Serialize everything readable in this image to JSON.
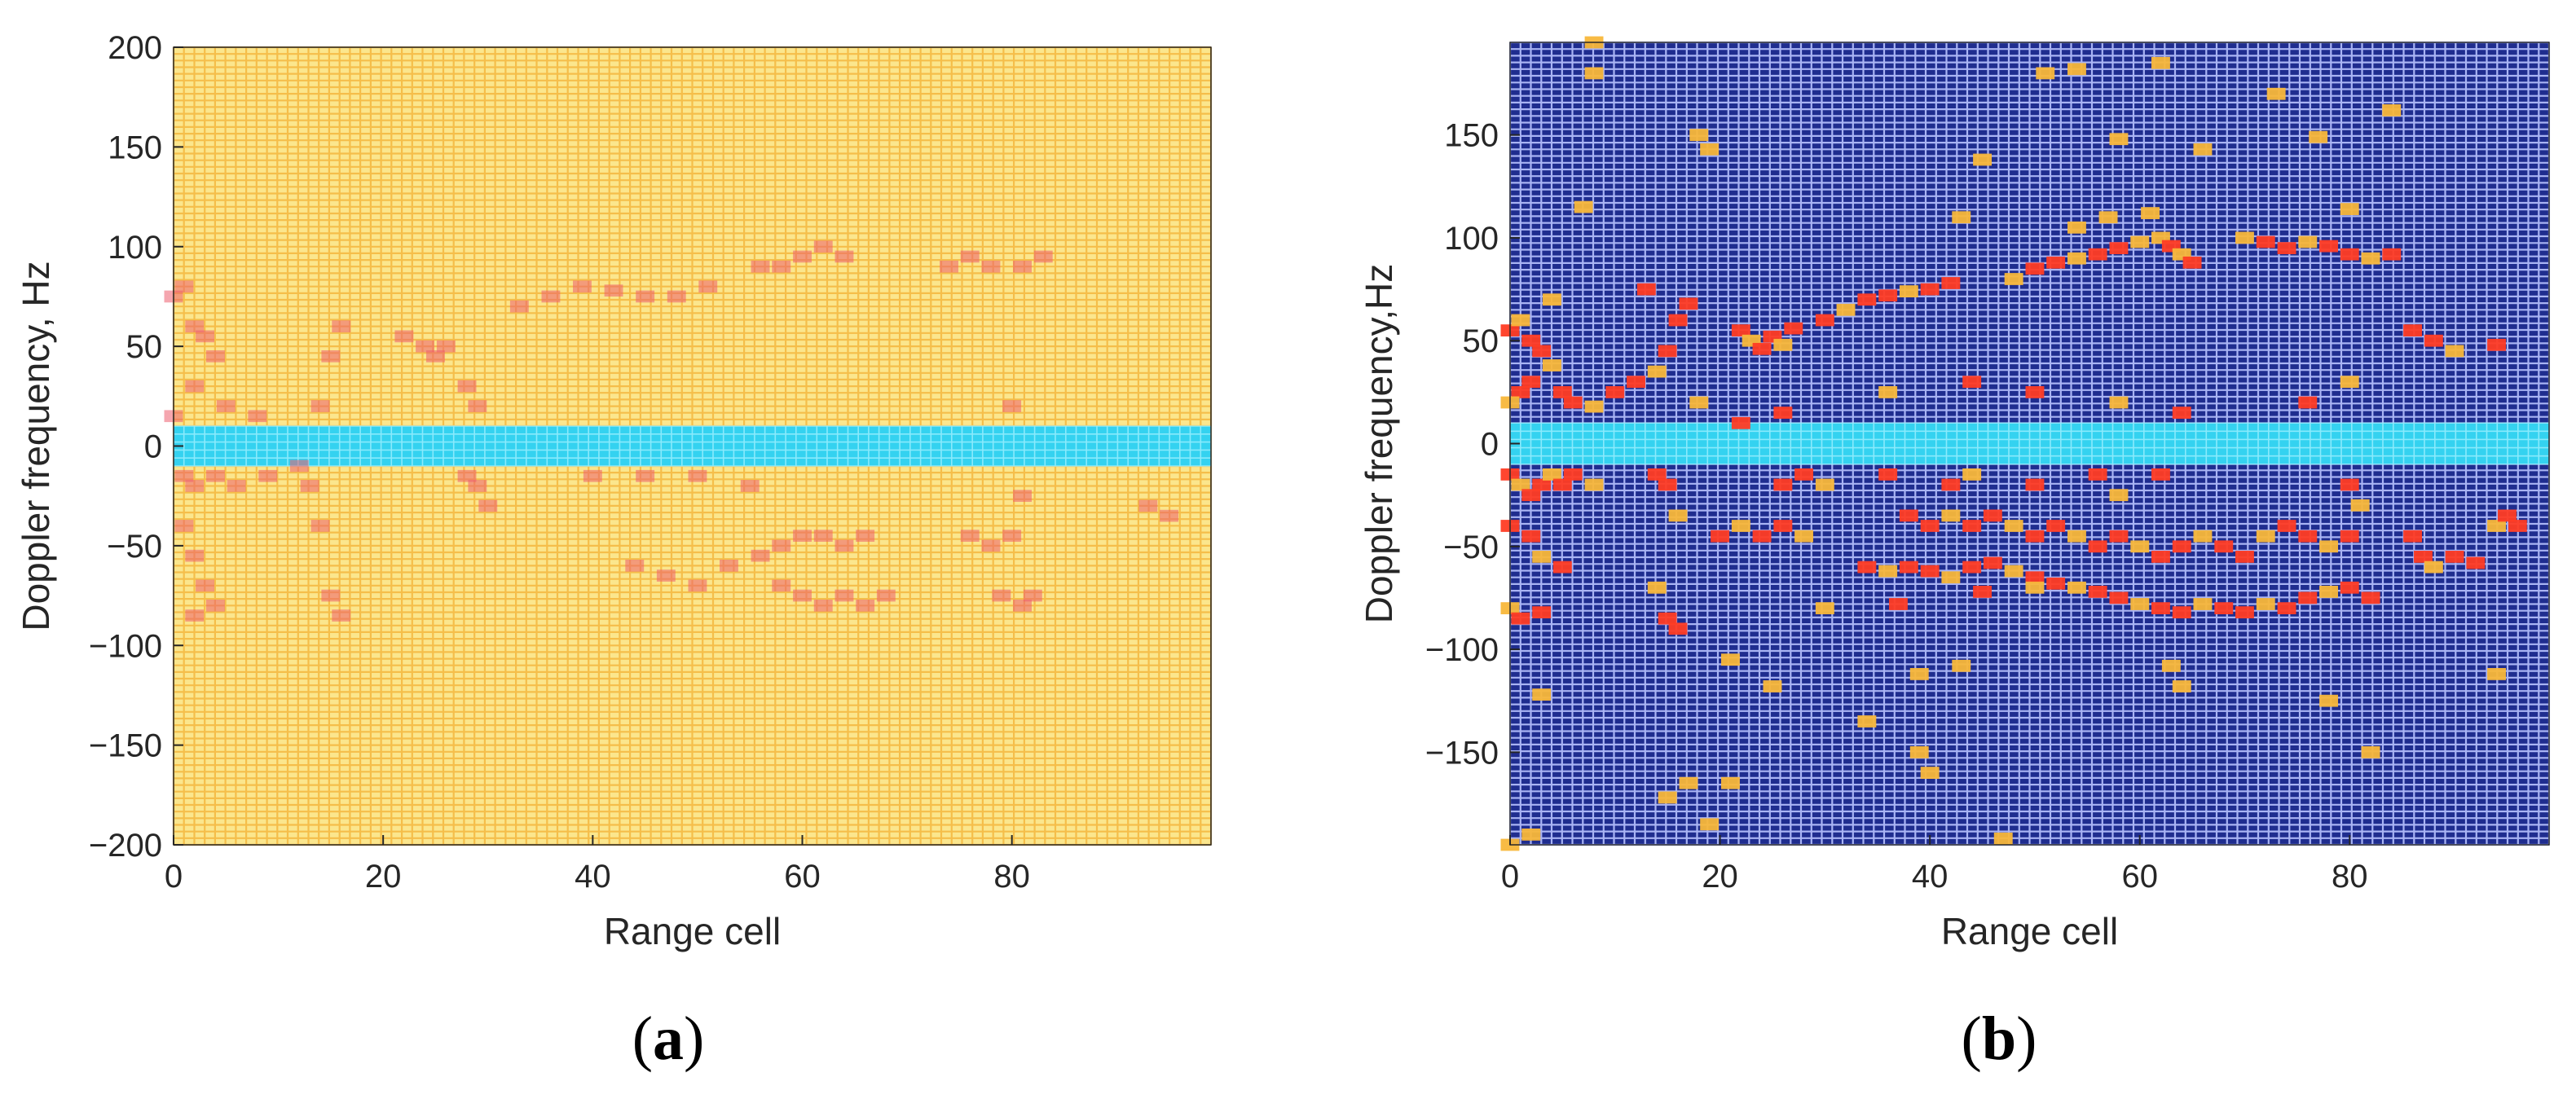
{
  "figure": {
    "panel_a_label": "a",
    "panel_b_label": "b"
  },
  "chart_data": [
    {
      "type": "heatmap",
      "panel": "a",
      "title": "",
      "xlabel": "Range cell",
      "ylabel": "Doppler frequency, Hz",
      "xlim": [
        0,
        99
      ],
      "ylim": [
        -200,
        200
      ],
      "xticks": [
        0,
        20,
        40,
        60,
        80
      ],
      "yticks": [
        -200,
        -150,
        -100,
        -50,
        0,
        50,
        100,
        150,
        200
      ],
      "xtick_labels": [
        "0",
        "20",
        "40",
        "60",
        "80"
      ],
      "ytick_labels": [
        "−200",
        "−150",
        "−100",
        "−50",
        "0",
        "50",
        "100",
        "150",
        "200"
      ],
      "grid": true,
      "colors": {
        "background": "#fbe68d",
        "grid": "#f4b942",
        "highlight": "#ec5d6e",
        "clutter_band": "#34d2f0"
      },
      "clutter_band": [
        -10,
        10
      ],
      "points": [
        [
          0,
          75
        ],
        [
          1,
          80
        ],
        [
          2,
          60
        ],
        [
          3,
          55
        ],
        [
          4,
          45
        ],
        [
          2,
          30
        ],
        [
          0,
          15
        ],
        [
          5,
          20
        ],
        [
          8,
          15
        ],
        [
          1,
          -15
        ],
        [
          2,
          -20
        ],
        [
          4,
          -15
        ],
        [
          6,
          -20
        ],
        [
          9,
          -15
        ],
        [
          1,
          -40
        ],
        [
          2,
          -55
        ],
        [
          3,
          -70
        ],
        [
          4,
          -80
        ],
        [
          2,
          -85
        ],
        [
          13,
          -20
        ],
        [
          14,
          -40
        ],
        [
          15,
          -75
        ],
        [
          16,
          -85
        ],
        [
          14,
          20
        ],
        [
          15,
          45
        ],
        [
          16,
          60
        ],
        [
          12,
          -10
        ],
        [
          22,
          55
        ],
        [
          24,
          50
        ],
        [
          26,
          50
        ],
        [
          25,
          45
        ],
        [
          28,
          30
        ],
        [
          29,
          20
        ],
        [
          28,
          -15
        ],
        [
          29,
          -20
        ],
        [
          30,
          -30
        ],
        [
          33,
          70
        ],
        [
          36,
          75
        ],
        [
          39,
          80
        ],
        [
          42,
          78
        ],
        [
          45,
          75
        ],
        [
          48,
          75
        ],
        [
          51,
          80
        ],
        [
          40,
          -15
        ],
        [
          45,
          -15
        ],
        [
          50,
          -15
        ],
        [
          55,
          -20
        ],
        [
          44,
          -60
        ],
        [
          47,
          -65
        ],
        [
          50,
          -70
        ],
        [
          53,
          -60
        ],
        [
          56,
          -55
        ],
        [
          58,
          -50
        ],
        [
          60,
          -45
        ],
        [
          62,
          -45
        ],
        [
          64,
          -50
        ],
        [
          66,
          -45
        ],
        [
          56,
          90
        ],
        [
          58,
          90
        ],
        [
          60,
          95
        ],
        [
          62,
          100
        ],
        [
          64,
          95
        ],
        [
          58,
          -70
        ],
        [
          60,
          -75
        ],
        [
          62,
          -80
        ],
        [
          64,
          -75
        ],
        [
          66,
          -80
        ],
        [
          68,
          -75
        ],
        [
          74,
          90
        ],
        [
          76,
          95
        ],
        [
          78,
          90
        ],
        [
          81,
          90
        ],
        [
          83,
          95
        ],
        [
          76,
          -45
        ],
        [
          78,
          -50
        ],
        [
          80,
          -45
        ],
        [
          79,
          -75
        ],
        [
          81,
          -80
        ],
        [
          82,
          -75
        ],
        [
          80,
          20
        ],
        [
          81,
          -25
        ],
        [
          93,
          -30
        ],
        [
          95,
          -35
        ]
      ]
    },
    {
      "type": "heatmap",
      "panel": "b",
      "title": "",
      "xlabel": "Range cell",
      "ylabel": "Doppler frequency,Hz",
      "xlim": [
        0,
        99
      ],
      "ylim": [
        -195,
        195
      ],
      "xticks": [
        0,
        20,
        40,
        60,
        80
      ],
      "yticks": [
        -150,
        -100,
        -50,
        0,
        50,
        100,
        150
      ],
      "xtick_labels": [
        "0",
        "20",
        "40",
        "60",
        "80"
      ],
      "ytick_labels": [
        "−150",
        "−100",
        "−50",
        "0",
        "50",
        "100",
        "150"
      ],
      "grid": true,
      "colors": {
        "background": "#1f2d8f",
        "grid": "#b8c3ff",
        "highlight": "#ff3c24",
        "detection": "#f8b73a",
        "clutter_band": "#34d2f0"
      },
      "clutter_band": [
        -10,
        10
      ],
      "points": [
        [
          0,
          -195
        ],
        [
          2,
          -190
        ],
        [
          8,
          195
        ],
        [
          8,
          180
        ],
        [
          51,
          180
        ],
        [
          54,
          182
        ],
        [
          62,
          185
        ],
        [
          73,
          170
        ],
        [
          84,
          162
        ],
        [
          18,
          150
        ],
        [
          19,
          143
        ],
        [
          45,
          138
        ],
        [
          58,
          148
        ],
        [
          66,
          143
        ],
        [
          77,
          149
        ],
        [
          7,
          115
        ],
        [
          43,
          110
        ],
        [
          54,
          105
        ],
        [
          57,
          110
        ],
        [
          61,
          112
        ],
        [
          80,
          114
        ],
        [
          4,
          70
        ],
        [
          13,
          75
        ],
        [
          17,
          68
        ],
        [
          70,
          100
        ],
        [
          72,
          98
        ],
        [
          74,
          95
        ],
        [
          76,
          98
        ],
        [
          78,
          96
        ],
        [
          80,
          92
        ],
        [
          82,
          90
        ],
        [
          84,
          92
        ],
        [
          22,
          55
        ],
        [
          23,
          50
        ],
        [
          24,
          46
        ],
        [
          25,
          52
        ],
        [
          26,
          48
        ],
        [
          27,
          56
        ],
        [
          30,
          60
        ],
        [
          32,
          65
        ],
        [
          34,
          70
        ],
        [
          36,
          72
        ],
        [
          38,
          74
        ],
        [
          40,
          75
        ],
        [
          42,
          78
        ],
        [
          48,
          80
        ],
        [
          50,
          85
        ],
        [
          52,
          88
        ],
        [
          54,
          90
        ],
        [
          56,
          92
        ],
        [
          58,
          95
        ],
        [
          60,
          98
        ],
        [
          62,
          100
        ],
        [
          63,
          96
        ],
        [
          64,
          92
        ],
        [
          65,
          88
        ],
        [
          0,
          55
        ],
        [
          1,
          60
        ],
        [
          2,
          50
        ],
        [
          3,
          45
        ],
        [
          4,
          38
        ],
        [
          2,
          30
        ],
        [
          1,
          25
        ],
        [
          0,
          20
        ],
        [
          5,
          25
        ],
        [
          6,
          20
        ],
        [
          8,
          18
        ],
        [
          10,
          25
        ],
        [
          12,
          30
        ],
        [
          14,
          35
        ],
        [
          15,
          45
        ],
        [
          16,
          60
        ],
        [
          18,
          20
        ],
        [
          22,
          10
        ],
        [
          26,
          15
        ],
        [
          36,
          25
        ],
        [
          44,
          30
        ],
        [
          50,
          25
        ],
        [
          58,
          20
        ],
        [
          64,
          15
        ],
        [
          76,
          20
        ],
        [
          80,
          30
        ],
        [
          86,
          55
        ],
        [
          88,
          50
        ],
        [
          90,
          45
        ],
        [
          94,
          48
        ],
        [
          0,
          -15
        ],
        [
          1,
          -20
        ],
        [
          2,
          -25
        ],
        [
          3,
          -20
        ],
        [
          4,
          -15
        ],
        [
          5,
          -20
        ],
        [
          6,
          -15
        ],
        [
          8,
          -20
        ],
        [
          14,
          -15
        ],
        [
          15,
          -20
        ],
        [
          16,
          -35
        ],
        [
          26,
          -20
        ],
        [
          28,
          -15
        ],
        [
          30,
          -20
        ],
        [
          36,
          -15
        ],
        [
          42,
          -20
        ],
        [
          44,
          -15
        ],
        [
          50,
          -20
        ],
        [
          56,
          -15
        ],
        [
          58,
          -25
        ],
        [
          62,
          -15
        ],
        [
          80,
          -20
        ],
        [
          81,
          -30
        ],
        [
          0,
          -40
        ],
        [
          2,
          -45
        ],
        [
          3,
          -55
        ],
        [
          5,
          -60
        ],
        [
          20,
          -45
        ],
        [
          22,
          -40
        ],
        [
          24,
          -45
        ],
        [
          26,
          -40
        ],
        [
          28,
          -45
        ],
        [
          38,
          -35
        ],
        [
          40,
          -40
        ],
        [
          42,
          -35
        ],
        [
          44,
          -40
        ],
        [
          46,
          -35
        ],
        [
          48,
          -40
        ],
        [
          50,
          -45
        ],
        [
          52,
          -40
        ],
        [
          54,
          -45
        ],
        [
          56,
          -50
        ],
        [
          58,
          -45
        ],
        [
          60,
          -50
        ],
        [
          62,
          -55
        ],
        [
          64,
          -50
        ],
        [
          66,
          -45
        ],
        [
          68,
          -50
        ],
        [
          70,
          -55
        ],
        [
          72,
          -45
        ],
        [
          74,
          -40
        ],
        [
          76,
          -45
        ],
        [
          78,
          -50
        ],
        [
          80,
          -45
        ],
        [
          34,
          -60
        ],
        [
          36,
          -62
        ],
        [
          38,
          -60
        ],
        [
          40,
          -62
        ],
        [
          42,
          -65
        ],
        [
          44,
          -60
        ],
        [
          46,
          -58
        ],
        [
          48,
          -62
        ],
        [
          50,
          -65
        ],
        [
          52,
          -68
        ],
        [
          54,
          -70
        ],
        [
          56,
          -72
        ],
        [
          58,
          -75
        ],
        [
          60,
          -78
        ],
        [
          62,
          -80
        ],
        [
          64,
          -82
        ],
        [
          66,
          -78
        ],
        [
          68,
          -80
        ],
        [
          70,
          -82
        ],
        [
          72,
          -78
        ],
        [
          74,
          -80
        ],
        [
          76,
          -75
        ],
        [
          78,
          -72
        ],
        [
          80,
          -70
        ],
        [
          82,
          -75
        ],
        [
          0,
          -80
        ],
        [
          1,
          -85
        ],
        [
          3,
          -82
        ],
        [
          14,
          -70
        ],
        [
          15,
          -85
        ],
        [
          16,
          -90
        ],
        [
          30,
          -80
        ],
        [
          37,
          -78
        ],
        [
          45,
          -72
        ],
        [
          50,
          -70
        ],
        [
          86,
          -45
        ],
        [
          87,
          -55
        ],
        [
          88,
          -60
        ],
        [
          90,
          -55
        ],
        [
          92,
          -58
        ],
        [
          94,
          -40
        ],
        [
          95,
          -35
        ],
        [
          96,
          -40
        ],
        [
          21,
          -105
        ],
        [
          25,
          -118
        ],
        [
          39,
          -112
        ],
        [
          43,
          -108
        ],
        [
          63,
          -108
        ],
        [
          64,
          -118
        ],
        [
          78,
          -125
        ],
        [
          94,
          -112
        ],
        [
          3,
          -122
        ],
        [
          34,
          -135
        ],
        [
          39,
          -150
        ],
        [
          40,
          -160
        ],
        [
          15,
          -172
        ],
        [
          17,
          -165
        ],
        [
          19,
          -185
        ],
        [
          21,
          -165
        ],
        [
          47,
          -192
        ],
        [
          82,
          -150
        ]
      ]
    }
  ]
}
